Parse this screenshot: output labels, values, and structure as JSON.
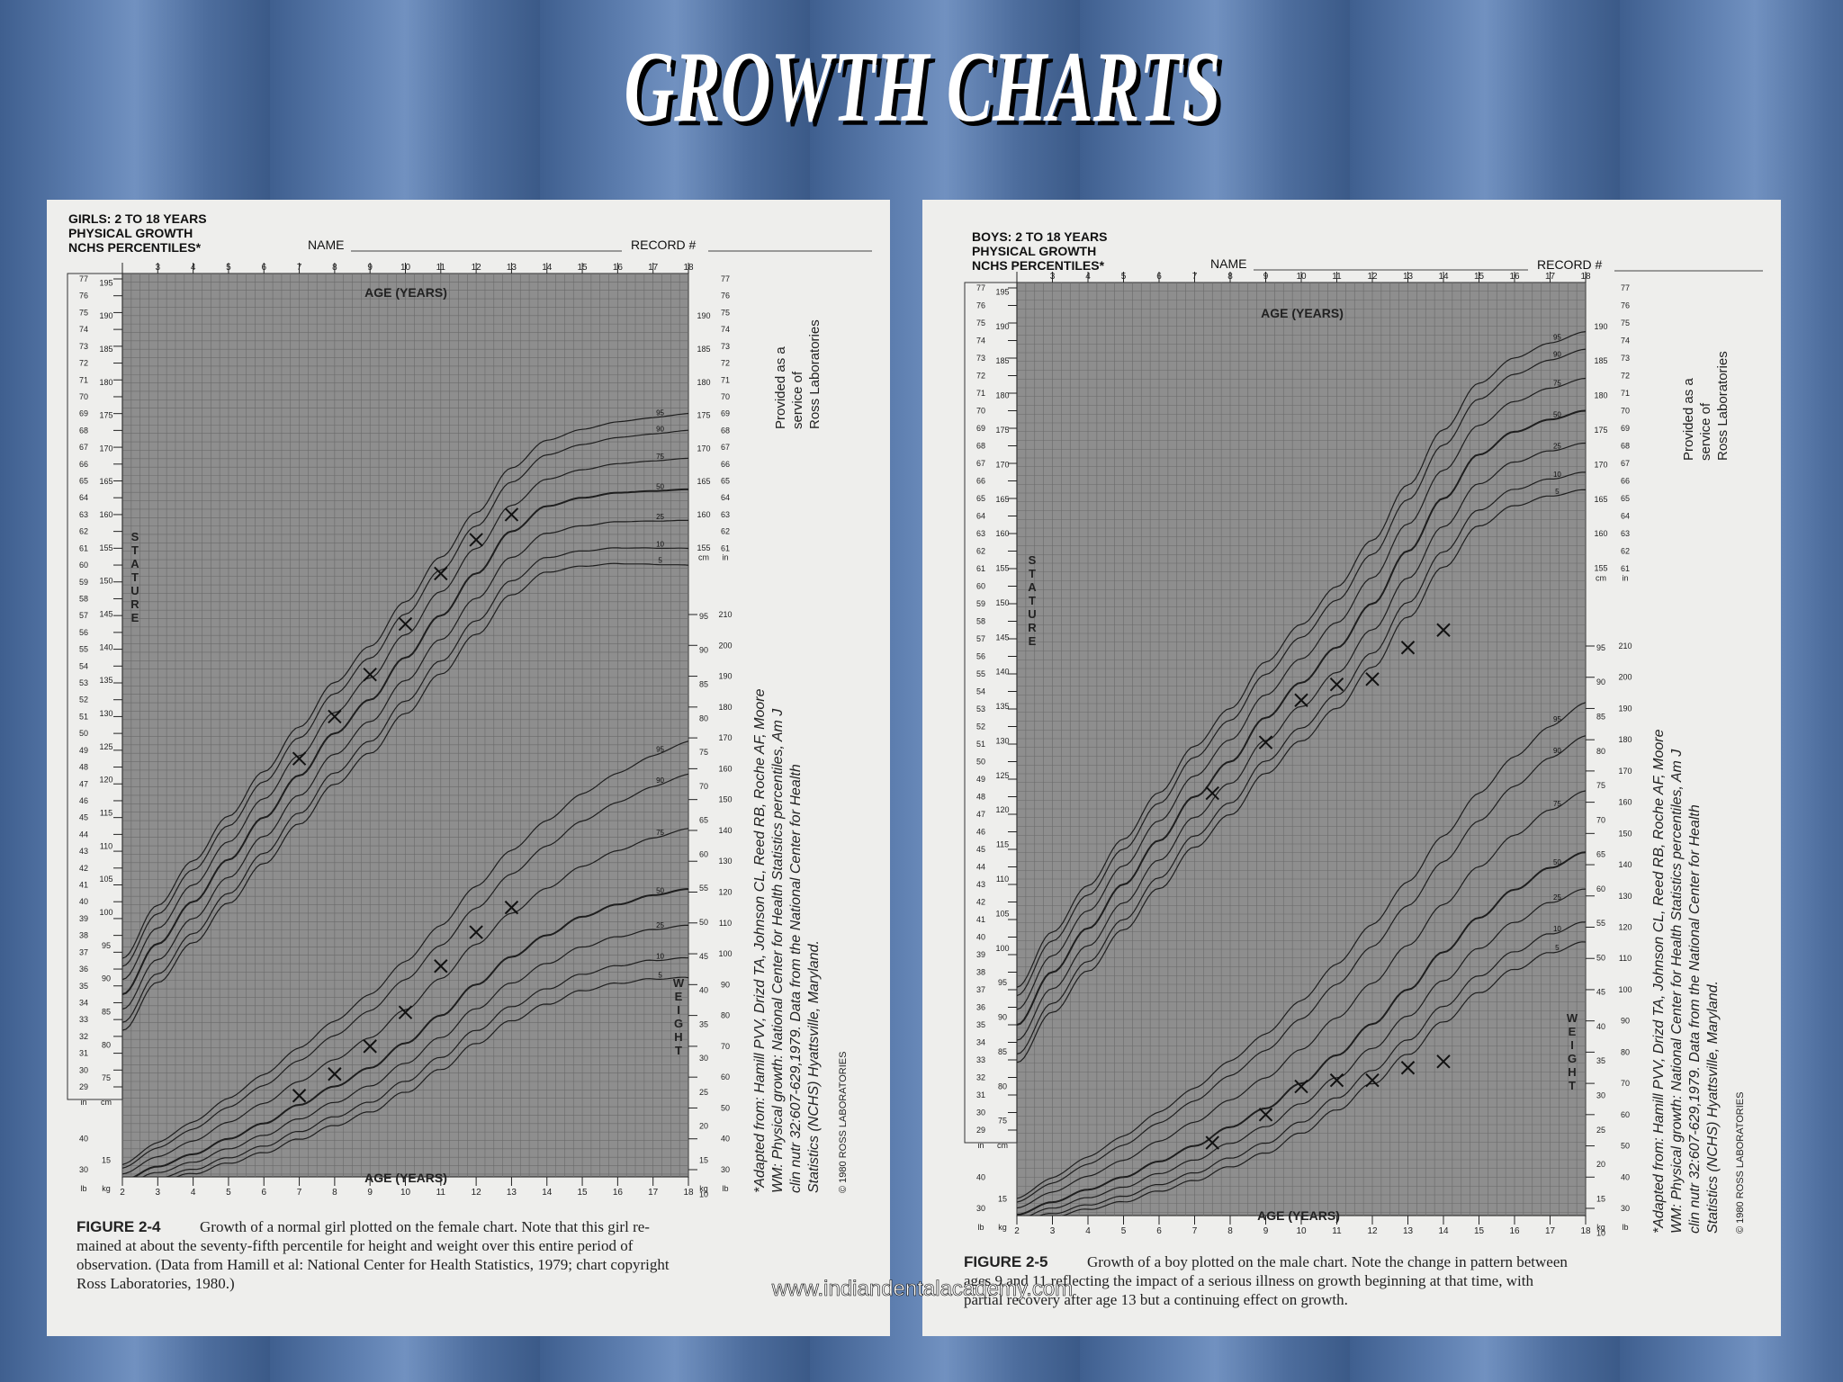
{
  "title": "GROWTH CHARTS",
  "watermark": "www.indiandentalacademy.com",
  "scales": {
    "ages": [
      2,
      3,
      4,
      5,
      6,
      7,
      8,
      9,
      10,
      11,
      12,
      13,
      14,
      15,
      16,
      17,
      18
    ],
    "inches": [
      29,
      30,
      31,
      32,
      33,
      34,
      35,
      36,
      37,
      38,
      39,
      40,
      41,
      42,
      43,
      44,
      45,
      46,
      47,
      48,
      49,
      50,
      51,
      52,
      53,
      54,
      55,
      56,
      57,
      58,
      59,
      60,
      61,
      62,
      63,
      64,
      65,
      66,
      67,
      68,
      69,
      70,
      71,
      72,
      73,
      74,
      75,
      76,
      77
    ],
    "cm": [
      75,
      80,
      85,
      90,
      95,
      100,
      105,
      110,
      115,
      120,
      125,
      130,
      135,
      140,
      145,
      150,
      155,
      160,
      165,
      170,
      175,
      180,
      185,
      190,
      195
    ],
    "lb": [
      30,
      40,
      50,
      60,
      70,
      80,
      90,
      100,
      110,
      120,
      130,
      140,
      150,
      160,
      170,
      180,
      190,
      200,
      210
    ],
    "kg": [
      10,
      15,
      20,
      25,
      30,
      35,
      40,
      45,
      50,
      55,
      60,
      65,
      70,
      75,
      80,
      85,
      90,
      95
    ],
    "percentiles": [
      5,
      10,
      25,
      50,
      75,
      90,
      95
    ]
  },
  "charts": [
    {
      "header": [
        "GIRLS: 2 TO 18 YEARS",
        "PHYSICAL GROWTH",
        "NCHS PERCENTILES*"
      ],
      "name_label": "NAME",
      "record_label": "RECORD #",
      "age_label_top": "AGE (YEARS)",
      "age_label_bottom": "AGE (YEARS)",
      "stature_label": "STATURE",
      "weight_label": "WEIGHT",
      "units": {
        "in": "in",
        "cm": "cm",
        "lb": "lb",
        "kg": "kg"
      },
      "side_note": [
        "Provided as a",
        "service of",
        "Ross Laboratories"
      ],
      "citation": [
        "*Adapted from: Hamill PVV, Drizd TA, Johnson CL, Reed RB, Roche AF, Moore",
        "WM: Physical growth: National Center for Health Statistics percentiles, Am J",
        "clin nutr 32:607-629,1979. Data from the National Center for Health",
        "Statistics (NCHS) Hyattsville, Maryland."
      ],
      "copyright": "© 1980 ROSS LABORATORIES",
      "figure_label": "FIGURE 2-4",
      "caption": [
        "Growth of a normal girl plotted on the female chart. Note that this girl re-",
        "mained at about the seventy-fifth percentile for height and weight over this entire period of",
        "observation. (Data from Hamill et al: National Center for Health Statistics, 1979; chart copyright",
        "Ross Laboratories, 1980.)"
      ],
      "stature_marks": {
        "ages": [
          7,
          8,
          9,
          10,
          11,
          12,
          13
        ],
        "inches": [
          48.5,
          51,
          53.5,
          56.5,
          59.5,
          61.5,
          63
        ]
      },
      "weight_marks": {
        "ages": [
          7,
          8,
          9,
          10,
          11,
          12,
          13
        ],
        "lb": [
          54,
          61,
          70,
          81,
          96,
          107,
          115
        ]
      }
    },
    {
      "header": [
        "BOYS: 2 TO 18 YEARS",
        "PHYSICAL GROWTH",
        "NCHS PERCENTILES*"
      ],
      "name_label": "NAME",
      "record_label": "RECORD #",
      "age_label_top": "AGE (YEARS)",
      "age_label_bottom": "AGE (YEARS)",
      "stature_label": "STATURE",
      "weight_label": "WEIGHT",
      "units": {
        "in": "in",
        "cm": "cm",
        "lb": "lb",
        "kg": "kg"
      },
      "side_note": [
        "Provided as a",
        "service of",
        "Ross Laboratories"
      ],
      "citation": [
        "*Adapted from: Hamill PVV, Drizd TA, Johnson CL, Reed RB, Roche AF, Moore",
        "WM: Physical growth: National Center for Health Statistics percentiles, Am J",
        "clin nutr 32:607-629,1979. Data from the National Center for Health",
        "Statistics (NCHS) Hyattsville, Maryland."
      ],
      "copyright": "© 1980 ROSS LABORATORIES",
      "figure_label": "FIGURE 2-5",
      "caption": [
        "Growth of a boy plotted on the male chart. Note the change in pattern between",
        "ages 9 and 11 reflecting the impact of a serious illness on growth beginning at that time, with",
        "partial recovery after age 13 but a continuing effect on growth."
      ],
      "stature_marks": {
        "ages": [
          7.5,
          9,
          10,
          11,
          12,
          13,
          14
        ],
        "inches": [
          48.2,
          51.1,
          53.5,
          54.4,
          54.7,
          56.5,
          57.5
        ]
      },
      "weight_marks": {
        "ages": [
          7.5,
          9,
          10,
          11,
          12,
          13,
          14
        ],
        "lb": [
          51,
          60,
          69,
          71,
          71,
          75,
          77
        ]
      }
    }
  ]
}
